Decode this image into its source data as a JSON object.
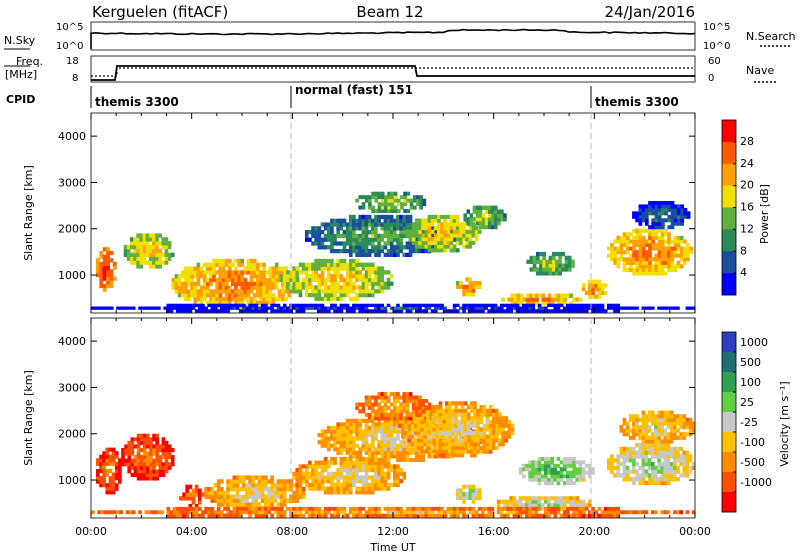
{
  "header": {
    "station": "Kerguelen (fitACF)",
    "beam": "Beam 12",
    "date": "24/Jan/2016"
  },
  "panels": {
    "nsky_label": "N.Sky",
    "nsky_ticks": [
      "10^5",
      "10^0"
    ],
    "nsearch_label": "N.Search",
    "nsearch_ticks": [
      "10^5",
      "10^0"
    ],
    "freq_label": "Freq.",
    "freq_unit": "[MHz]",
    "freq_ticks": [
      "18",
      "8"
    ],
    "nave_label": "Nave",
    "nave_ticks": [
      "60",
      "0"
    ],
    "cpid_label": "CPID",
    "cpid_segments": [
      {
        "label": "themis 3300",
        "start_h": 0,
        "end_h": 8
      },
      {
        "label": "normal (fast) 151",
        "start_h": 8,
        "end_h": 20
      },
      {
        "label": "themis 3300",
        "start_h": 20,
        "end_h": 24
      }
    ]
  },
  "axes": {
    "y_label": "Slant Range [km]",
    "y_ticks": [
      "4000",
      "3000",
      "2000",
      "1000"
    ],
    "x_label": "Time UT",
    "x_ticks": [
      "00:00",
      "04:00",
      "08:00",
      "12:00",
      "16:00",
      "20:00",
      "00:00"
    ]
  },
  "colorbars": {
    "power_label": "Power [dB]",
    "power_ticks": [
      "28",
      "24",
      "20",
      "16",
      "12",
      "8",
      "4"
    ],
    "power_colors": [
      "#ff0000",
      "#ff5a00",
      "#ffa000",
      "#f0e000",
      "#60b040",
      "#2a8a5a",
      "#1a4fa0",
      "#0000ff"
    ],
    "velocity_label": "Velocity [m s⁻¹]",
    "velocity_ticks": [
      "1000",
      "500",
      "100",
      "25",
      "-25",
      "-100",
      "-500",
      "-1000"
    ],
    "velocity_colors": [
      "#2a40c0",
      "#207070",
      "#30a050",
      "#60d040",
      "#c8c8c8",
      "#ffc000",
      "#ff8c00",
      "#ff5000",
      "#ff0000"
    ]
  },
  "chart_data": [
    {
      "type": "heatmap",
      "name": "power",
      "x_range_h": [
        0,
        24
      ],
      "ylim": [
        180,
        4500
      ],
      "blobs": [
        {
          "t0": 0.2,
          "t1": 1.0,
          "r0": 650,
          "r1": 1600,
          "level": 0
        },
        {
          "t0": 1.3,
          "t1": 3.3,
          "r0": 1150,
          "r1": 1900,
          "level": 2
        },
        {
          "t0": 3.2,
          "t1": 8.3,
          "r0": 280,
          "r1": 1350,
          "level": 1
        },
        {
          "t0": 7.5,
          "t1": 12.0,
          "r0": 450,
          "r1": 1350,
          "level": 2
        },
        {
          "t0": 8.5,
          "t1": 14.5,
          "r0": 1400,
          "r1": 2300,
          "level": 4
        },
        {
          "t0": 10.5,
          "t1": 13.3,
          "r0": 2350,
          "r1": 2800,
          "level": 3
        },
        {
          "t0": 12.5,
          "t1": 15.5,
          "r0": 1500,
          "r1": 2300,
          "level": 2
        },
        {
          "t0": 14.8,
          "t1": 16.5,
          "r0": 2000,
          "r1": 2500,
          "level": 3
        },
        {
          "t0": 14.5,
          "t1": 15.5,
          "r0": 550,
          "r1": 950,
          "level": 1
        },
        {
          "t0": 16.3,
          "t1": 19.5,
          "r0": 350,
          "r1": 600,
          "level": 1
        },
        {
          "t0": 17.3,
          "t1": 19.2,
          "r0": 1000,
          "r1": 1500,
          "level": 3
        },
        {
          "t0": 19.5,
          "t1": 20.5,
          "r0": 500,
          "r1": 900,
          "level": 1
        },
        {
          "t0": 20.5,
          "t1": 23.9,
          "r0": 1000,
          "r1": 2000,
          "level": 1
        },
        {
          "t0": 21.5,
          "t1": 23.8,
          "r0": 2000,
          "r1": 2600,
          "level": 5
        },
        {
          "t0": 0.0,
          "t1": 24.0,
          "r0": 200,
          "r1": 380,
          "level": 6
        }
      ]
    },
    {
      "type": "heatmap",
      "name": "velocity",
      "x_range_h": [
        0,
        24
      ],
      "ylim": [
        180,
        4500
      ],
      "blobs": [
        {
          "t0": 0.2,
          "t1": 1.2,
          "r0": 700,
          "r1": 1700,
          "level": 6
        },
        {
          "t0": 1.2,
          "t1": 3.3,
          "r0": 1000,
          "r1": 2000,
          "level": 6
        },
        {
          "t0": 3.5,
          "t1": 4.5,
          "r0": 400,
          "r1": 900,
          "level": 6
        },
        {
          "t0": 4.5,
          "t1": 8.5,
          "r0": 350,
          "r1": 1100,
          "level": 4
        },
        {
          "t0": 8.0,
          "t1": 12.5,
          "r0": 700,
          "r1": 1500,
          "level": 4
        },
        {
          "t0": 9.0,
          "t1": 15.5,
          "r0": 1400,
          "r1": 2400,
          "level": 4
        },
        {
          "t0": 12.2,
          "t1": 16.8,
          "r0": 1500,
          "r1": 2700,
          "level": 4
        },
        {
          "t0": 10.5,
          "t1": 13.5,
          "r0": 2300,
          "r1": 2900,
          "level": 5
        },
        {
          "t0": 14.5,
          "t1": 15.5,
          "r0": 500,
          "r1": 900,
          "level": 3
        },
        {
          "t0": 16.0,
          "t1": 20.0,
          "r0": 350,
          "r1": 650,
          "level": 3
        },
        {
          "t0": 17.0,
          "t1": 20.0,
          "r0": 900,
          "r1": 1500,
          "level": 2
        },
        {
          "t0": 20.5,
          "t1": 24.0,
          "r0": 900,
          "r1": 1800,
          "level": 3
        },
        {
          "t0": 21.0,
          "t1": 24.0,
          "r0": 1800,
          "r1": 2500,
          "level": 4
        },
        {
          "t0": 0.0,
          "t1": 24.0,
          "r0": 200,
          "r1": 420,
          "level": 5
        }
      ]
    }
  ]
}
